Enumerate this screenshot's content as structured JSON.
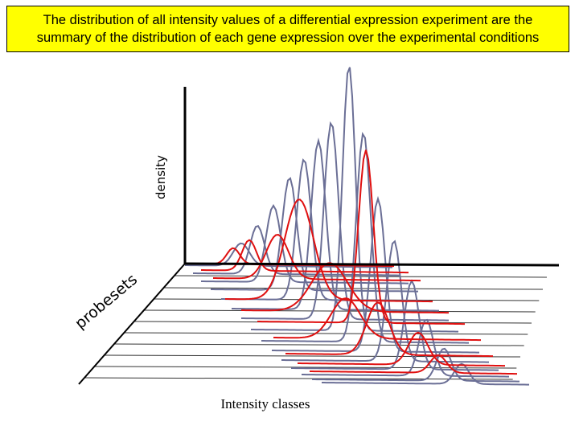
{
  "title": {
    "line1": "The distribution of all intensity values of a differential expression experiment are the",
    "line2": "summary of the distribution of each gene expression over the experimental conditions"
  },
  "labels": {
    "density": "density",
    "probesets": "probesets",
    "intensity": "Intensity classes"
  },
  "colors": {
    "title_background": "#ffff00",
    "axis": "#000000",
    "curve_gray": "#6b6f96",
    "curve_red": "#e01010"
  }
}
